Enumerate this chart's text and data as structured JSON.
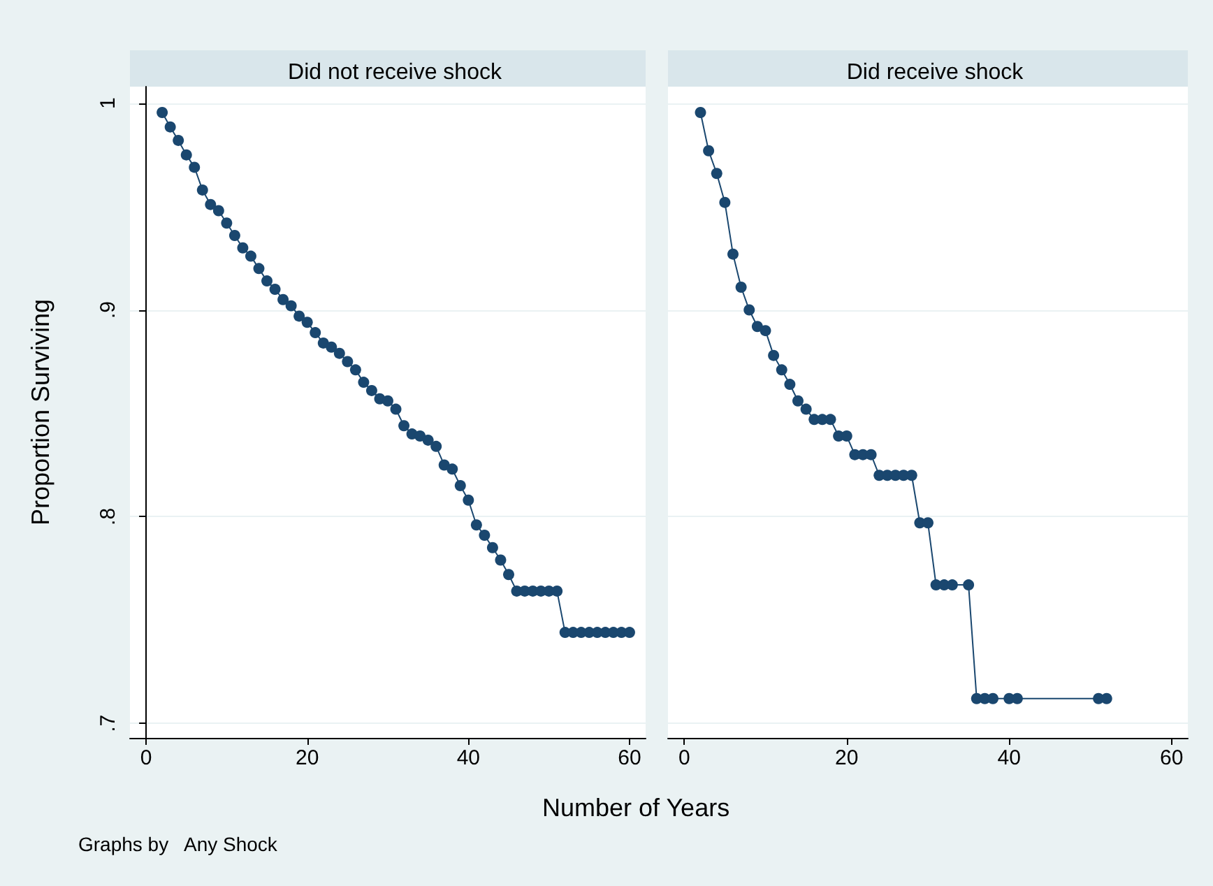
{
  "chart_data": [
    {
      "type": "line",
      "title": "Did not receive shock",
      "xlabel": "Number of Years",
      "ylabel": "Proportion Surviving",
      "annotations": [
        "Graphs by   Any Shock"
      ],
      "x": [
        2,
        3,
        4,
        5,
        6,
        7,
        8,
        9,
        10,
        11,
        12,
        13,
        14,
        15,
        16,
        17,
        18,
        19,
        20,
        21,
        22,
        23,
        24,
        25,
        26,
        27,
        28,
        29,
        30,
        31,
        32,
        33,
        34,
        35,
        36,
        37,
        38,
        39,
        40,
        41,
        42,
        43,
        44,
        45,
        46,
        47,
        48,
        49,
        50,
        51,
        52,
        53,
        54,
        55,
        56,
        57,
        58,
        59,
        60
      ],
      "series": [
        {
          "color": "#1a476f",
          "values": [
            0.9955,
            0.9885,
            0.982,
            0.975,
            0.969,
            0.958,
            0.951,
            0.948,
            0.942,
            0.936,
            0.93,
            0.926,
            0.92,
            0.914,
            0.91,
            0.905,
            0.902,
            0.897,
            0.894,
            0.889,
            0.884,
            0.882,
            0.879,
            0.875,
            0.871,
            0.865,
            0.861,
            0.857,
            0.856,
            0.852,
            0.844,
            0.84,
            0.839,
            0.837,
            0.834,
            0.825,
            0.823,
            0.815,
            0.808,
            0.796,
            0.791,
            0.785,
            0.779,
            0.772,
            0.764,
            0.764,
            0.764,
            0.764,
            0.764,
            0.764,
            0.744,
            0.744,
            0.744,
            0.744,
            0.744,
            0.744,
            0.744,
            0.744,
            0.744
          ]
        }
      ],
      "xlim": [
        -2,
        62
      ],
      "xticks": [
        0,
        20,
        40,
        60
      ],
      "ylim": [
        0.693,
        1.008
      ],
      "yticks": [
        {
          "value": 0.7,
          "label": ".7"
        },
        {
          "value": 0.8,
          "label": ".8"
        },
        {
          "value": 0.9,
          "label": ".9"
        },
        {
          "value": 1,
          "label": "1"
        }
      ],
      "grid": "y",
      "marker": "circle",
      "line_style": "solid"
    },
    {
      "type": "line",
      "title": "Did receive shock",
      "x": [
        2,
        3,
        4,
        5,
        6,
        7,
        8,
        9,
        10,
        11,
        12,
        13,
        14,
        15,
        16,
        17,
        18,
        19,
        20,
        21,
        22,
        23,
        24,
        25,
        26,
        27,
        28,
        29,
        30,
        31,
        32,
        33,
        35,
        36,
        37,
        38,
        40,
        41,
        51,
        52
      ],
      "series": [
        {
          "color": "#1a476f",
          "values": [
            0.9955,
            0.977,
            0.966,
            0.952,
            0.927,
            0.911,
            0.9,
            0.892,
            0.89,
            0.878,
            0.871,
            0.864,
            0.856,
            0.852,
            0.847,
            0.847,
            0.847,
            0.839,
            0.839,
            0.83,
            0.83,
            0.83,
            0.82,
            0.82,
            0.82,
            0.82,
            0.82,
            0.797,
            0.797,
            0.767,
            0.767,
            0.767,
            0.767,
            0.712,
            0.712,
            0.712,
            0.712,
            0.712,
            0.712,
            0.712
          ]
        }
      ],
      "xlim": [
        -2,
        62
      ],
      "xticks": [
        0,
        20,
        40,
        60
      ],
      "ylim": [
        0.693,
        1.008
      ],
      "yticks": [
        {
          "value": 0.7,
          "label": null
        },
        {
          "value": 0.8,
          "label": null
        },
        {
          "value": 0.9,
          "label": null
        },
        {
          "value": 1,
          "label": null
        }
      ],
      "grid": "y",
      "marker": "circle",
      "line_style": "solid",
      "tick_labels": "x"
    }
  ]
}
